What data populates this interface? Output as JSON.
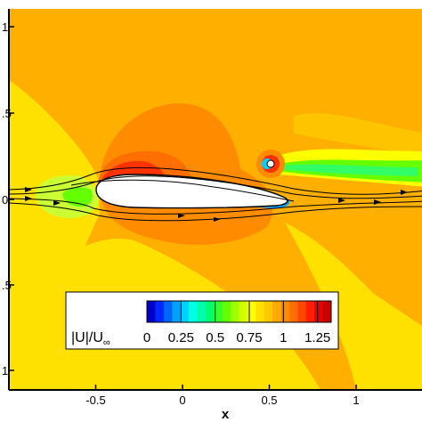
{
  "chart_data": {
    "type": "heatmap",
    "subtype": "filled contour of normalized velocity magnitude with streamlines",
    "xlabel": "x",
    "ylabel": "",
    "x_ticks": [
      "-0.5",
      "0",
      "0.5",
      "1"
    ],
    "y_ticks": [
      "1",
      ".5",
      "0",
      ".5",
      "1"
    ],
    "xlim": [
      -1.0,
      1.3
    ],
    "ylim": [
      -1.1,
      1.1
    ],
    "colorbar": {
      "label_main": "|U|/U",
      "label_sub": "∞",
      "ticks": [
        "0",
        "0.25",
        "0.5",
        "0.75",
        "1",
        "1.25"
      ],
      "range": [
        0,
        1.35
      ],
      "placement": "lower-center",
      "colors": [
        "#0000c8",
        "#0028ff",
        "#0064ff",
        "#00a0ff",
        "#00d2ff",
        "#00ffe6",
        "#00ffaa",
        "#00ff6e",
        "#32ff32",
        "#64ff00",
        "#a0ff00",
        "#d2ff00",
        "#ffff00",
        "#ffe100",
        "#ffc800",
        "#ffaa00",
        "#ff8c00",
        "#ff6e00",
        "#ff4600",
        "#ff1e00",
        "#e60000",
        "#c80000"
      ]
    },
    "field_colors": {
      "freestream": "#ffaf00",
      "far_field_low": "#ffe100",
      "stagnation": "#ccff33",
      "suction_peak": "#ff3200",
      "wake": "#32ff66",
      "separated_core": "#0000aa"
    },
    "annotations": [
      "airfoil body (white) centered near x=-0.1, y=0",
      "small cylinder near x=0.52, y=0.2 with wake downstream",
      "streamlines wrapping around airfoil"
    ],
    "grid": false
  }
}
